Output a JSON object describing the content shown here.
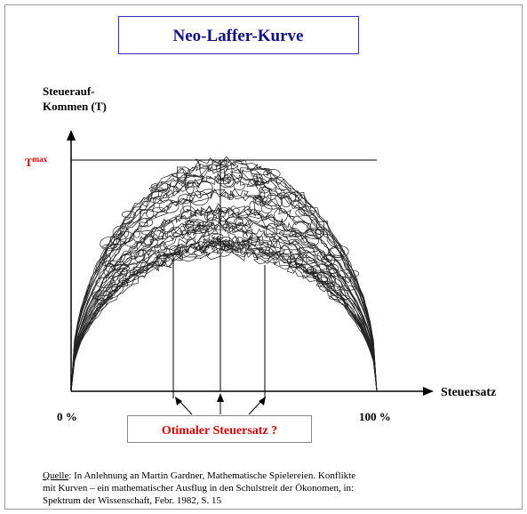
{
  "header": {
    "title": "Neo-Laffer-Kurve"
  },
  "axes": {
    "y_label": [
      "Steuerauf-",
      "Kommen (T)"
    ],
    "t_max": {
      "base": "T",
      "sup": "max"
    },
    "x_label": "Steuersatz",
    "x_start": "0 %",
    "x_end": "100 %"
  },
  "callout": "Otimaler Steuersatz ?",
  "source": {
    "label": "Quelle",
    "lines": [
      ": In Anlehnung an Martin Gardner, Mathematische Spielereien. Konflikte",
      "mit Kurven – ein mathematischer Ausflug in den Schulstreit der Ökonomen, in:",
      "Spektrum der Wissenschaft, Febr. 1982, S. 15"
    ]
  }
}
